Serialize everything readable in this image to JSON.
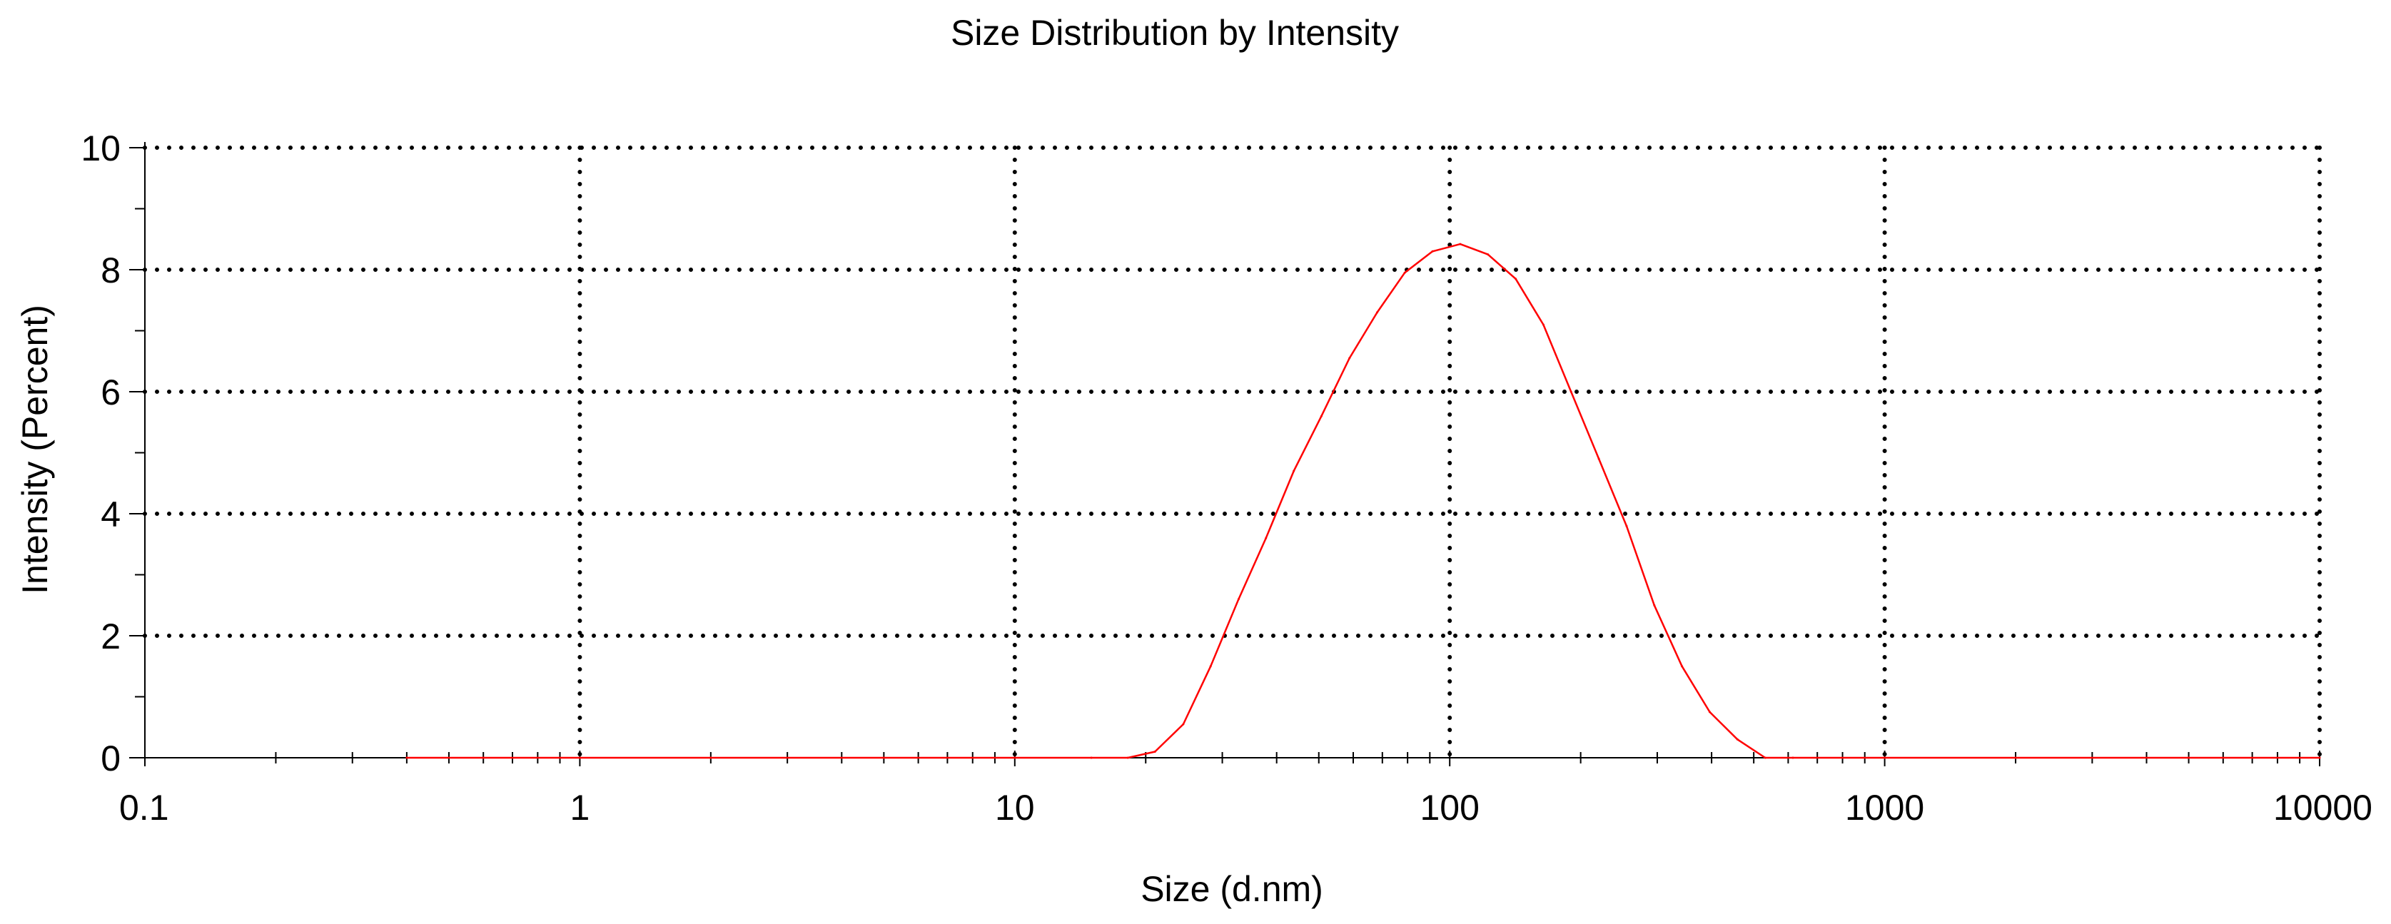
{
  "chart_data": {
    "type": "line",
    "title": "Size Distribution by Intensity",
    "xlabel": "Size (d.nm)",
    "ylabel": "Intensity (Percent)",
    "x_scale": "log",
    "xlim": [
      0.1,
      10000
    ],
    "ylim": [
      0,
      10
    ],
    "x_ticks": [
      0.1,
      1,
      10,
      100,
      1000,
      10000
    ],
    "x_tick_labels": [
      "0.1",
      "1",
      "10",
      "100",
      "1000",
      "10000"
    ],
    "y_ticks": [
      0,
      2,
      4,
      6,
      8,
      10
    ],
    "y_tick_labels": [
      "0",
      "2",
      "4",
      "6",
      "8",
      "10"
    ],
    "grid": true,
    "grid_style": "dotted",
    "series": [
      {
        "color": "#ff0000",
        "x": [
          0.4,
          0.6,
          1,
          2,
          5,
          10,
          15,
          18.2,
          21.0,
          24.4,
          28.2,
          32.7,
          37.8,
          43.8,
          50.7,
          58.8,
          68.1,
          78.8,
          91.3,
          105.7,
          122.4,
          141.8,
          164.2,
          190.1,
          220.2,
          255.0,
          295.3,
          342.0,
          396.1,
          458.7,
          531.2,
          615.1,
          1000,
          2000,
          5000,
          10000
        ],
        "y": [
          0,
          0,
          0,
          0,
          0,
          0,
          0,
          0,
          0.1,
          0.55,
          1.5,
          2.6,
          3.6,
          4.7,
          5.6,
          6.55,
          7.3,
          7.95,
          8.3,
          8.42,
          8.25,
          7.85,
          7.1,
          6.0,
          4.9,
          3.8,
          2.5,
          1.5,
          0.75,
          0.3,
          0.0,
          0,
          0,
          0,
          0,
          0
        ]
      }
    ]
  }
}
